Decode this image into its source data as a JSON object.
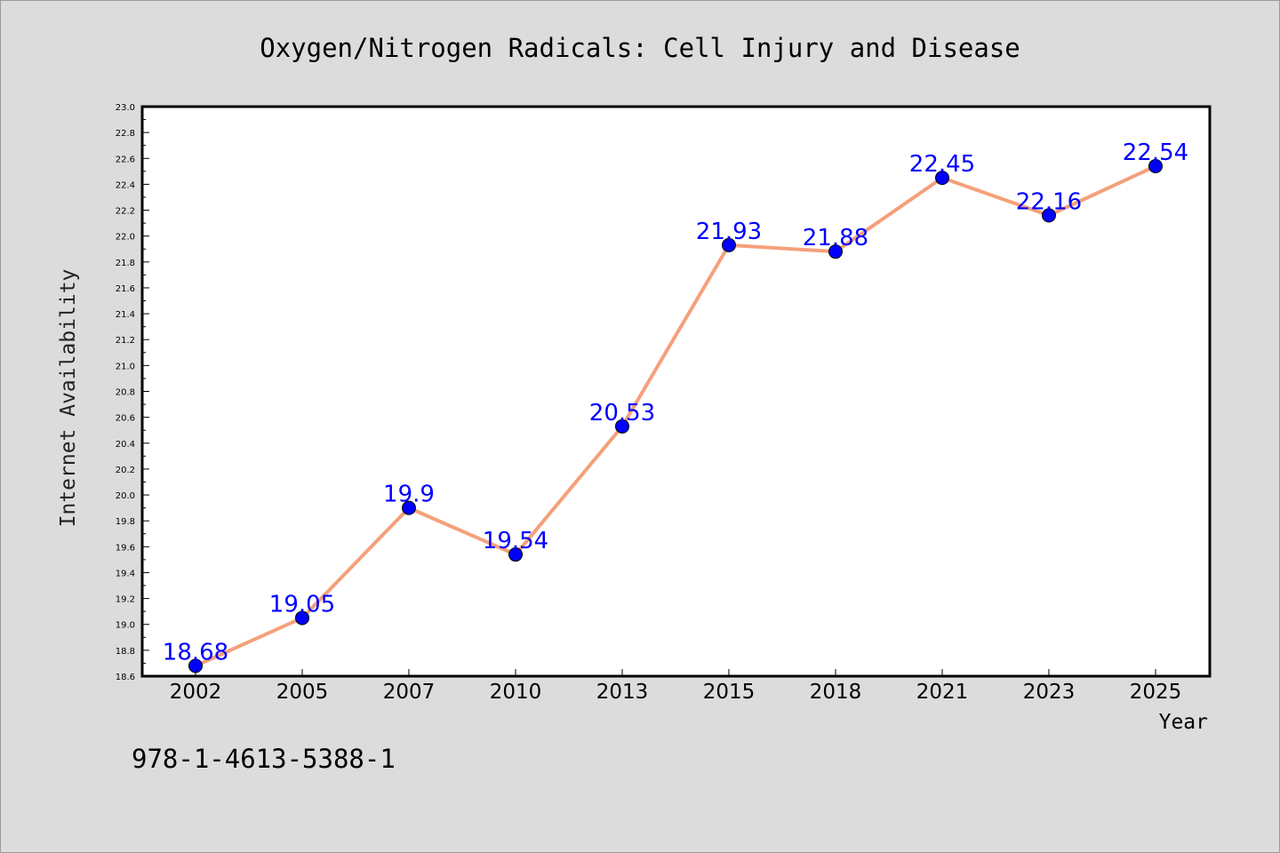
{
  "chart_data": {
    "type": "line",
    "title": "Oxygen/Nitrogen Radicals: Cell Injury and Disease",
    "xlabel": "Year",
    "ylabel": "Internet Availability",
    "categories": [
      "2002",
      "2005",
      "2007",
      "2010",
      "2013",
      "2015",
      "2018",
      "2021",
      "2023",
      "2025"
    ],
    "series": [
      {
        "values": [
          18.68,
          19.05,
          19.9,
          19.54,
          20.53,
          21.93,
          21.88,
          22.45,
          22.16,
          22.54
        ],
        "labels": [
          "18.68",
          "19.05",
          "19.9",
          "19.54",
          "20.53",
          "21.93",
          "21.88",
          "22.45",
          "22.16",
          "22.54"
        ],
        "line_color": "#f5a07a",
        "marker_color": "#0000ff"
      }
    ],
    "ylim": [
      18.6,
      23.0
    ],
    "yticks": [
      "18.6",
      "18.8",
      "19.0",
      "19.2",
      "19.4",
      "19.6",
      "19.8",
      "20.0",
      "20.2",
      "20.4",
      "20.6",
      "20.8",
      "21.0",
      "21.2",
      "21.4",
      "21.6",
      "21.8",
      "22.0",
      "22.2",
      "22.4",
      "22.6",
      "22.8",
      "23.0"
    ],
    "grid": false,
    "legend": "none"
  },
  "footer_text": "978-1-4613-5388-1",
  "colors": {
    "background": "#dcdcdc",
    "plot_background": "#ffffff",
    "data_label": "#0000ff"
  }
}
